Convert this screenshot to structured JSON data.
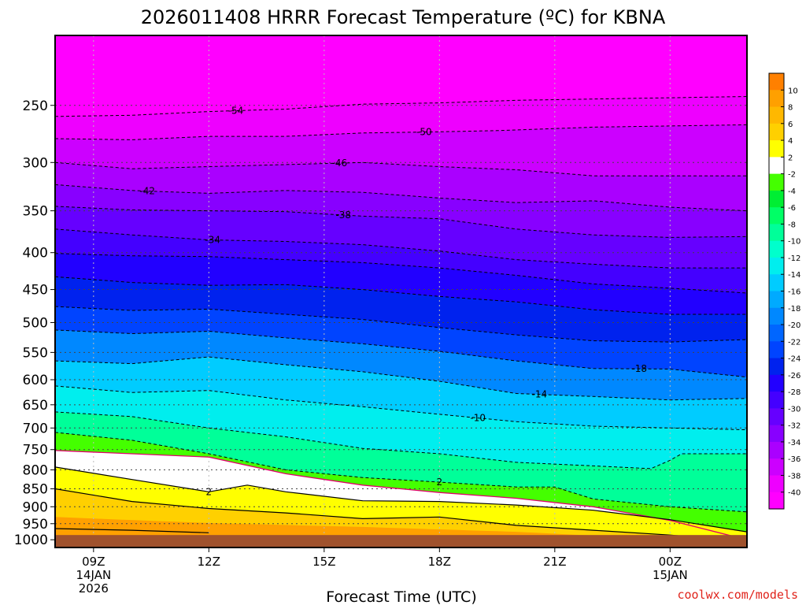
{
  "chart_data": {
    "type": "heatmap",
    "title": "2026011408 HRRR Forecast Temperature (ºC) for KBNA",
    "xlabel": "Forecast Time (UTC)",
    "ylabel": "",
    "credit": "coolwx.com/models",
    "x_ticks": [
      {
        "hour": 9,
        "lines": [
          "09Z",
          "14JAN",
          "2026"
        ]
      },
      {
        "hour": 12,
        "lines": [
          "12Z"
        ]
      },
      {
        "hour": 15,
        "lines": [
          "15Z"
        ]
      },
      {
        "hour": 18,
        "lines": [
          "18Z"
        ]
      },
      {
        "hour": 21,
        "lines": [
          "21Z"
        ]
      },
      {
        "hour": 24,
        "lines": [
          "00Z",
          "15JAN"
        ]
      }
    ],
    "xlim": [
      8,
      26
    ],
    "y_scale": "log-pressure",
    "y_ticks": [
      250,
      300,
      350,
      400,
      450,
      500,
      550,
      600,
      650,
      700,
      750,
      800,
      850,
      900,
      950,
      1000
    ],
    "ylim_hPa": [
      200,
      1025
    ],
    "colorbar": {
      "ticks": [
        10,
        8,
        6,
        4,
        2,
        -2,
        -4,
        -6,
        -8,
        -10,
        -12,
        -14,
        -16,
        -18,
        -20,
        -22,
        -24,
        -26,
        -28,
        -30,
        -32,
        -34,
        -36,
        -38,
        -40
      ],
      "colors": [
        "#ff8000",
        "#ffa000",
        "#ffb800",
        "#ffd000",
        "#ffff00",
        "#ffffff",
        "#44ff00",
        "#00ee33",
        "#00ff66",
        "#00ff99",
        "#00ffcc",
        "#00eeee",
        "#00ccff",
        "#00aaff",
        "#0088ff",
        "#0066ff",
        "#0044ff",
        "#0022ee",
        "#2200ff",
        "#4400ff",
        "#6600ff",
        "#8800ff",
        "#aa00ff",
        "#cc00ff",
        "#ee00ff",
        "#ff00ff"
      ]
    },
    "ground_color": "#a0522d",
    "contours": [
      {
        "value": -54,
        "label": "-54",
        "label_hour": 12.7,
        "points": [
          [
            8,
            259
          ],
          [
            10,
            258
          ],
          [
            12,
            255
          ],
          [
            14,
            253
          ],
          [
            16,
            249
          ],
          [
            18,
            248
          ],
          [
            20,
            246
          ],
          [
            22,
            245
          ],
          [
            24,
            244
          ],
          [
            26,
            243
          ]
        ]
      },
      {
        "value": -50,
        "label": "-50",
        "label_hour": 17.6,
        "points": [
          [
            8,
            278
          ],
          [
            10,
            279
          ],
          [
            12,
            276
          ],
          [
            14,
            276
          ],
          [
            16,
            273
          ],
          [
            18,
            272
          ],
          [
            19.5,
            271
          ],
          [
            22,
            268
          ],
          [
            24,
            267
          ],
          [
            26,
            266
          ]
        ]
      },
      {
        "value": -46,
        "label": "-46",
        "label_hour": 15.4,
        "points": [
          [
            8,
            300
          ],
          [
            10,
            306
          ],
          [
            12,
            304
          ],
          [
            14,
            302
          ],
          [
            16,
            300
          ],
          [
            18,
            304
          ],
          [
            20,
            307
          ],
          [
            22,
            313
          ],
          [
            24,
            313
          ],
          [
            26,
            313
          ]
        ]
      },
      {
        "value": -42,
        "label": "-42",
        "label_hour": 10.4,
        "points": [
          [
            8,
            322
          ],
          [
            10,
            328
          ],
          [
            12,
            331
          ],
          [
            14,
            328
          ],
          [
            16,
            330
          ],
          [
            18,
            336
          ],
          [
            20,
            341
          ],
          [
            22,
            339
          ],
          [
            24,
            346
          ],
          [
            26,
            350
          ]
        ]
      },
      {
        "value": -38,
        "label": "-38",
        "label_hour": 15.5,
        "points": [
          [
            8,
            345
          ],
          [
            10,
            349
          ],
          [
            12,
            350
          ],
          [
            14,
            351
          ],
          [
            16,
            356
          ],
          [
            18,
            359
          ],
          [
            20,
            371
          ],
          [
            22,
            378
          ],
          [
            24,
            381
          ],
          [
            26,
            380
          ]
        ]
      },
      {
        "value": -34,
        "label": "-34",
        "label_hour": 12.1,
        "points": [
          [
            8,
            371
          ],
          [
            10,
            378
          ],
          [
            12,
            384
          ],
          [
            14,
            386
          ],
          [
            16,
            390
          ],
          [
            18,
            398
          ],
          [
            20,
            409
          ],
          [
            22,
            415
          ],
          [
            24,
            420
          ],
          [
            26,
            420
          ]
        ]
      },
      {
        "value": -30,
        "label": "",
        "label_hour": 0,
        "points": [
          [
            8,
            401
          ],
          [
            10,
            404
          ],
          [
            12,
            405
          ],
          [
            14,
            409
          ],
          [
            16,
            413
          ],
          [
            18,
            420
          ],
          [
            20,
            430
          ],
          [
            22,
            442
          ],
          [
            24,
            448
          ],
          [
            26,
            455
          ]
        ]
      },
      {
        "value": -26,
        "label": "",
        "label_hour": 0,
        "points": [
          [
            8,
            432
          ],
          [
            10,
            440
          ],
          [
            12,
            444
          ],
          [
            14,
            443
          ],
          [
            16,
            450
          ],
          [
            18,
            460
          ],
          [
            20,
            468
          ],
          [
            22,
            480
          ],
          [
            24,
            487
          ],
          [
            26,
            487
          ]
        ]
      },
      {
        "value": -22,
        "label": "",
        "label_hour": 0,
        "points": [
          [
            8,
            475
          ],
          [
            10,
            481
          ],
          [
            12,
            479
          ],
          [
            14,
            487
          ],
          [
            16,
            495
          ],
          [
            18,
            508
          ],
          [
            20,
            520
          ],
          [
            22,
            530
          ],
          [
            24,
            532
          ],
          [
            26,
            528
          ]
        ]
      },
      {
        "value": -18,
        "label": "-18",
        "label_hour": 23.2,
        "points": [
          [
            8,
            512
          ],
          [
            10,
            518
          ],
          [
            12,
            514
          ],
          [
            14,
            525
          ],
          [
            16,
            535
          ],
          [
            18,
            548
          ],
          [
            20,
            565
          ],
          [
            22,
            579
          ],
          [
            24,
            580
          ],
          [
            26,
            595
          ]
        ]
      },
      {
        "value": -14,
        "label": "-14",
        "label_hour": 20.6,
        "points": [
          [
            8,
            565
          ],
          [
            10,
            570
          ],
          [
            12,
            558
          ],
          [
            14,
            572
          ],
          [
            16,
            585
          ],
          [
            18,
            603
          ],
          [
            20,
            627
          ],
          [
            22,
            633
          ],
          [
            24,
            640
          ],
          [
            26,
            637
          ]
        ]
      },
      {
        "value": -10,
        "label": "-10",
        "label_hour": 19.0,
        "points": [
          [
            8,
            612
          ],
          [
            10,
            625
          ],
          [
            12,
            621
          ],
          [
            14,
            640
          ],
          [
            16,
            654
          ],
          [
            18,
            670
          ],
          [
            20,
            686
          ],
          [
            22,
            696
          ],
          [
            24,
            700
          ],
          [
            26,
            704
          ]
        ]
      },
      {
        "value": -6,
        "label": "",
        "label_hour": 0,
        "points": [
          [
            8,
            665
          ],
          [
            10,
            675
          ],
          [
            12,
            700
          ],
          [
            14,
            720
          ],
          [
            16,
            747
          ],
          [
            18,
            760
          ],
          [
            20,
            781
          ],
          [
            22,
            790
          ],
          [
            23.5,
            797
          ],
          [
            24,
            776
          ],
          [
            24.3,
            760
          ],
          [
            26,
            760
          ]
        ]
      },
      {
        "value": 2,
        "label": "2",
        "label_hour": 18.0,
        "points": [
          [
            8,
            710
          ],
          [
            10,
            728
          ],
          [
            12,
            760
          ],
          [
            14,
            800
          ],
          [
            16,
            820
          ],
          [
            18,
            832
          ],
          [
            20,
            845
          ],
          [
            21,
            845
          ],
          [
            22,
            878
          ],
          [
            24,
            900
          ],
          [
            26,
            915
          ]
        ]
      }
    ],
    "freezing_lines": [
      {
        "value": 0,
        "points": [
          [
            8,
            752
          ],
          [
            10,
            760
          ],
          [
            12,
            768
          ],
          [
            14,
            810
          ],
          [
            16,
            840
          ],
          [
            18,
            860
          ],
          [
            20,
            876
          ],
          [
            22,
            900
          ],
          [
            24,
            940
          ],
          [
            26,
            1000
          ]
        ]
      }
    ],
    "warm_contours": [
      {
        "value": 2,
        "label": "2",
        "label_hour": 12.0,
        "points": [
          [
            8,
            793
          ],
          [
            10,
            825
          ],
          [
            12,
            858
          ],
          [
            13,
            840
          ],
          [
            14,
            858
          ],
          [
            16,
            883
          ],
          [
            18,
            885
          ],
          [
            20,
            895
          ],
          [
            22,
            910
          ],
          [
            24,
            938
          ],
          [
            26,
            975
          ]
        ]
      },
      {
        "value": 2,
        "label": "2",
        "label_hour": 18.0,
        "points": []
      },
      {
        "value": 6,
        "label": "",
        "label_hour": 0,
        "points": [
          [
            8,
            850
          ],
          [
            10,
            885
          ],
          [
            12,
            905
          ],
          [
            14,
            918
          ],
          [
            16,
            935
          ],
          [
            18,
            930
          ],
          [
            20,
            955
          ],
          [
            22,
            970
          ],
          [
            24,
            985
          ],
          [
            26,
            1005
          ]
        ]
      },
      {
        "value": 8,
        "label": "",
        "label_hour": 0,
        "points": [
          [
            8,
            965
          ],
          [
            10,
            970
          ],
          [
            12,
            978
          ]
        ]
      }
    ],
    "surface_hPa": [
      [
        8,
        985
      ],
      [
        26,
        985
      ]
    ]
  }
}
